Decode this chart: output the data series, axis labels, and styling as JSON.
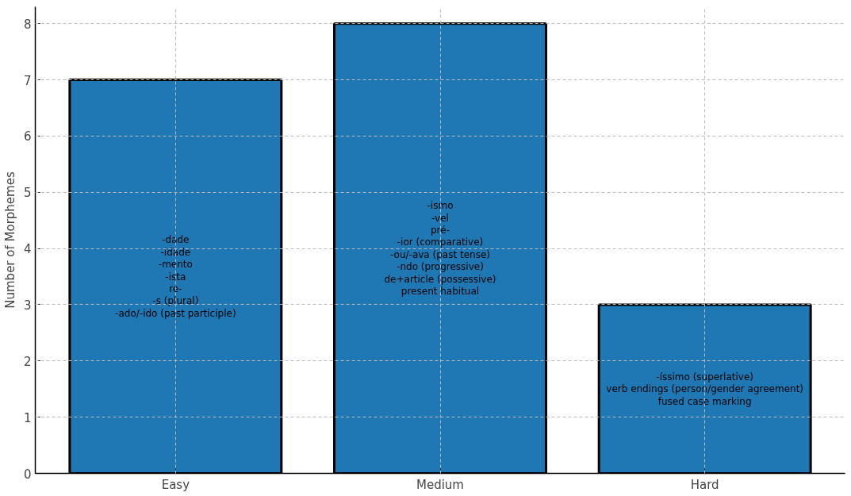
{
  "chart_data": {
    "type": "bar",
    "ylabel": "Number of Morphemes",
    "categories": [
      "Easy",
      "Medium",
      "Hard"
    ],
    "series": [
      {
        "color": "#1f77b4",
        "values": [
          7,
          8,
          3
        ]
      }
    ],
    "ylim": [
      0,
      8.3
    ],
    "yticks": [
      0,
      1,
      2,
      3,
      4,
      5,
      6,
      7,
      8
    ],
    "grid": true,
    "annotations": [
      "-dade\n-idade\n-mento\n-ista\nre-\n-s (plural)\n-ado/-ido (past participle)",
      "-ismo\n-vel\npré-\n-ior (comparative)\n-ou/-ava (past tense)\n-ndo (progressive)\nde+article (possessive)\npresent habitual",
      "-íssimo (superlative)\nverb endings (person/gender agreement)\nfused case marking"
    ]
  }
}
